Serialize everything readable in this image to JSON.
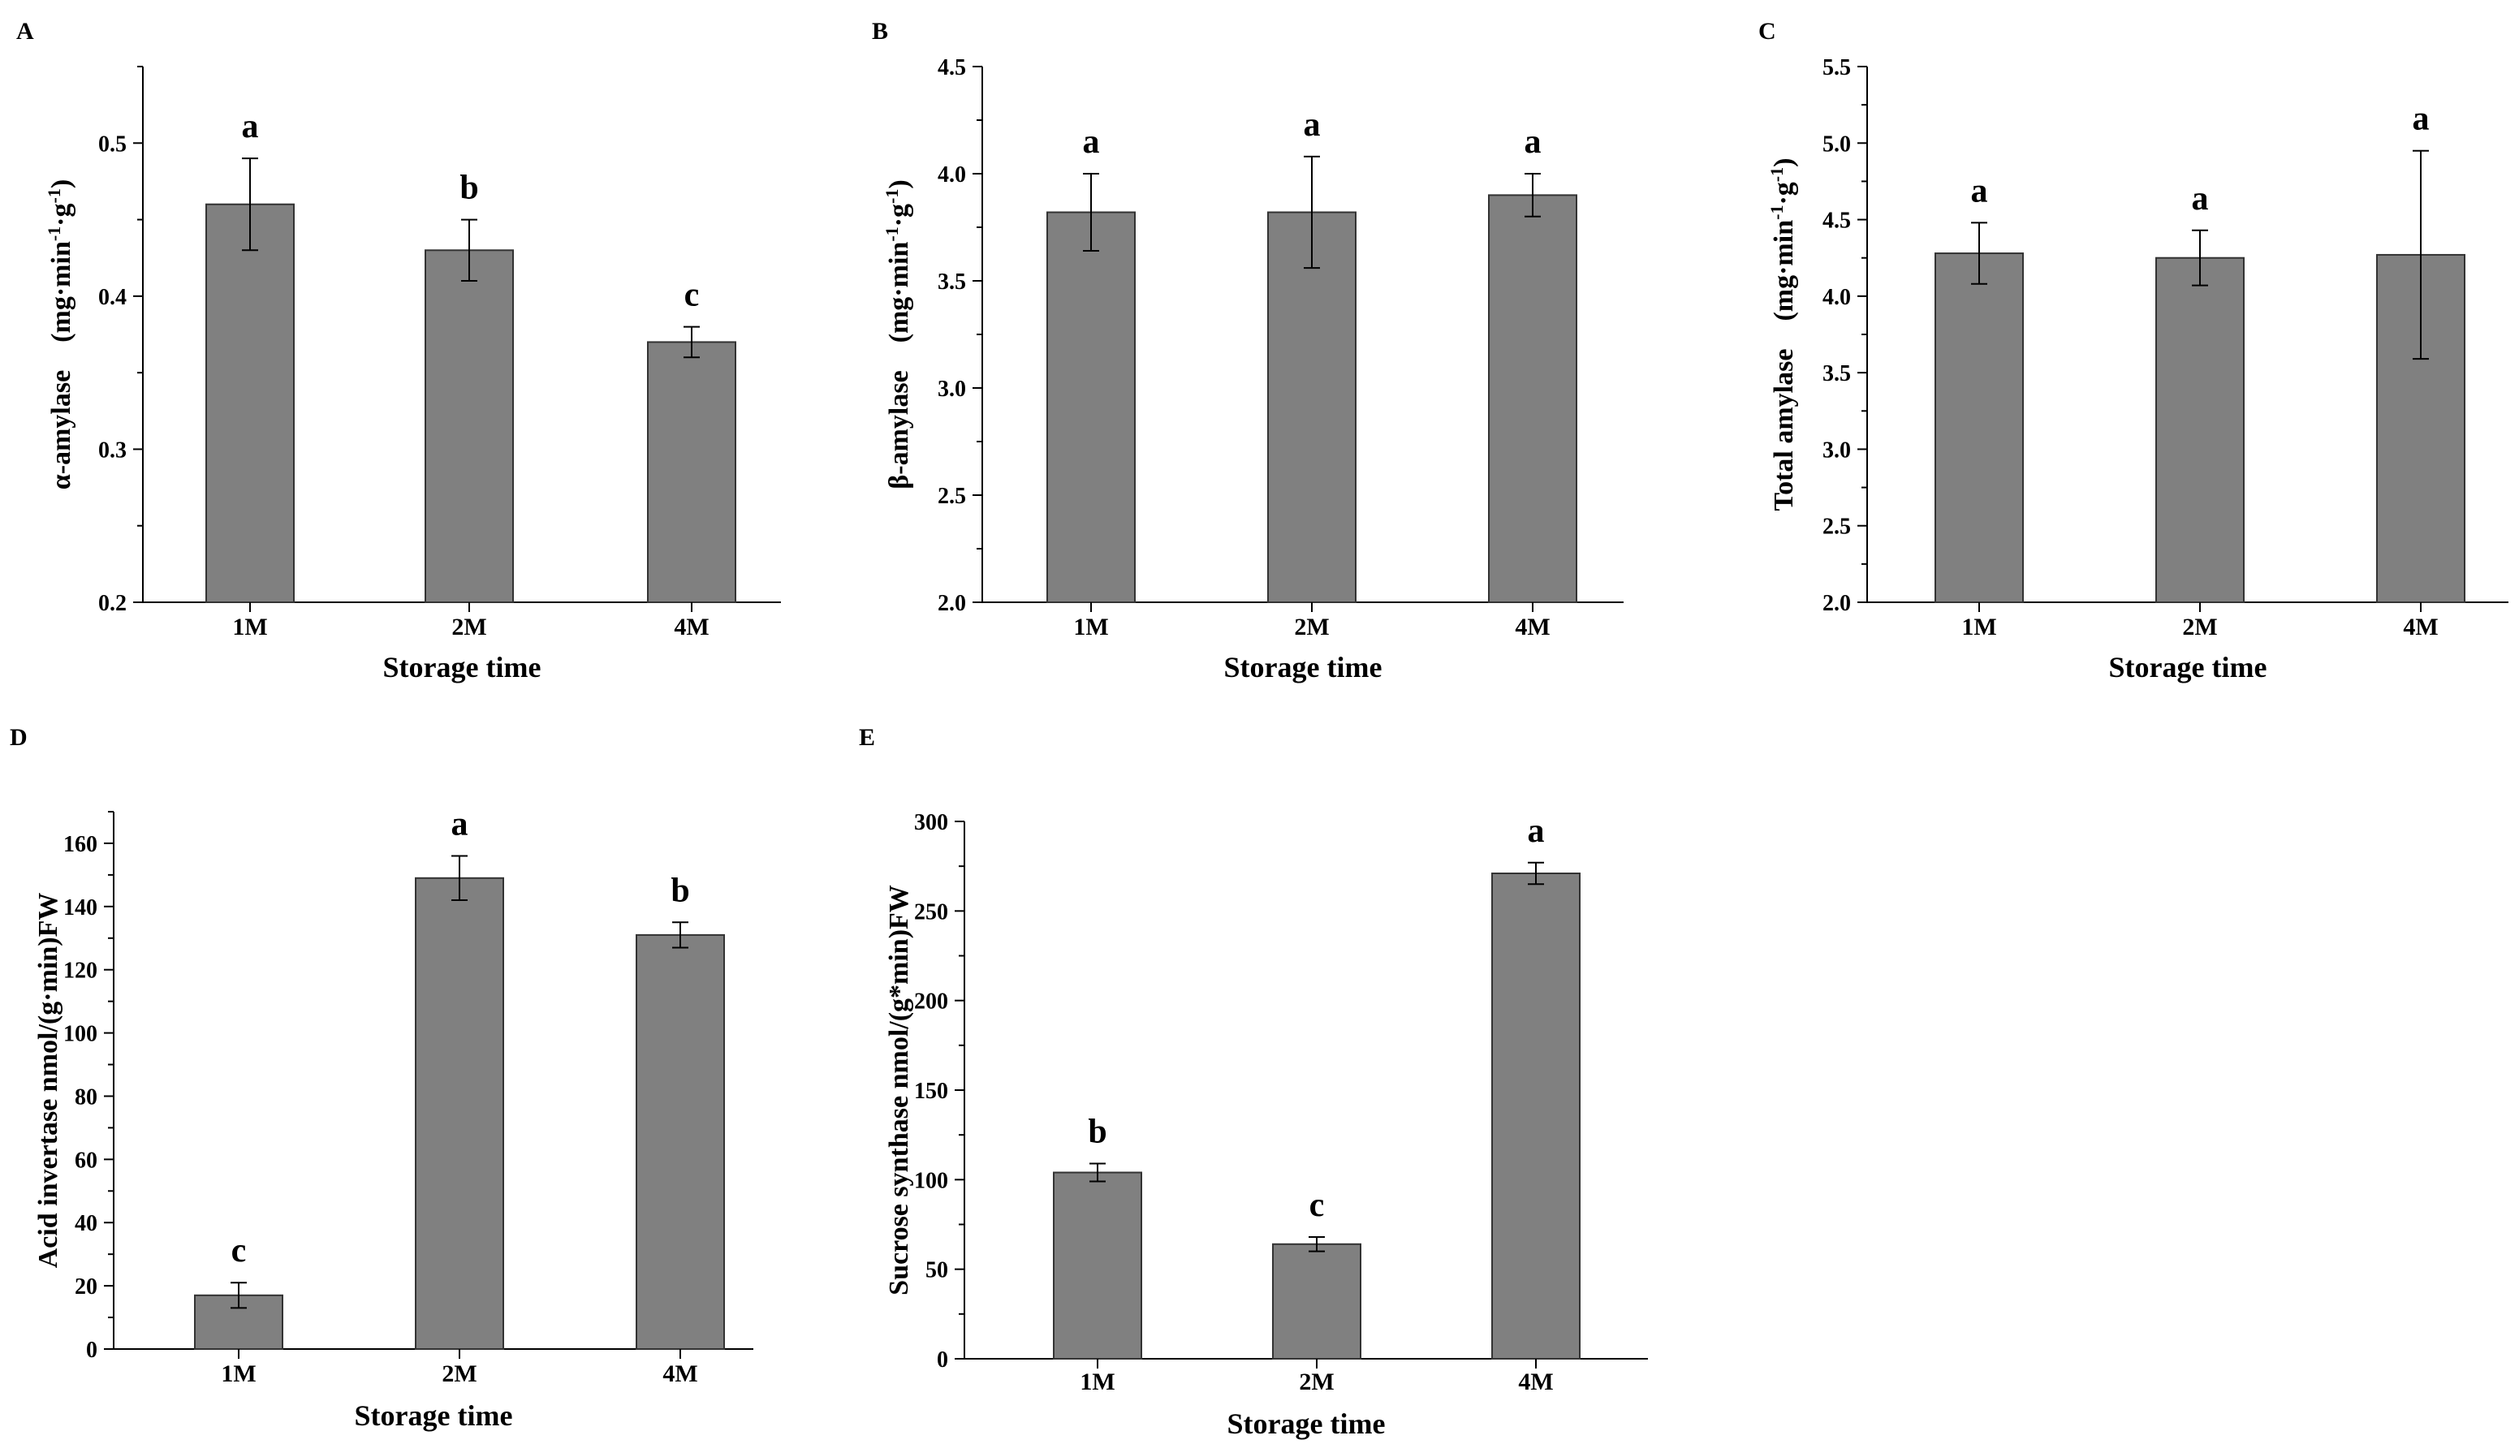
{
  "colors": {
    "bar_fill": "#808080",
    "bar_edge": "#333333",
    "axis": "#000000"
  },
  "chart_data": [
    {
      "panel": "A",
      "type": "bar",
      "categories": [
        "1M",
        "2M",
        "4M"
      ],
      "values": [
        0.46,
        0.43,
        0.37
      ],
      "errors": [
        0.03,
        0.02,
        0.01
      ],
      "letters": [
        "a",
        "b",
        "c"
      ],
      "xlabel": "Storage time",
      "ylabel_main": "α-amylase",
      "ylabel_unit": "(mg·min-1·g-1)",
      "ylim": [
        0.2,
        0.55
      ],
      "yticks": [
        0.2,
        0.3,
        0.4,
        0.5
      ],
      "ytick_labels": [
        "0.2",
        "0.3",
        "0.4",
        "0.5"
      ]
    },
    {
      "panel": "B",
      "type": "bar",
      "categories": [
        "1M",
        "2M",
        "4M"
      ],
      "values": [
        3.82,
        3.82,
        3.9
      ],
      "errors": [
        0.18,
        0.26,
        0.1
      ],
      "letters": [
        "a",
        "a",
        "a"
      ],
      "xlabel": "Storage time",
      "ylabel_main": "β-amylase",
      "ylabel_unit": "(mg·min-1·g-1)",
      "ylim": [
        2.0,
        4.5
      ],
      "yticks": [
        2.0,
        2.5,
        3.0,
        3.5,
        4.0,
        4.5
      ],
      "ytick_labels": [
        "2.0",
        "2.5",
        "3.0",
        "3.5",
        "4.0",
        "4.5"
      ]
    },
    {
      "panel": "C",
      "type": "bar",
      "categories": [
        "1M",
        "2M",
        "4M"
      ],
      "values": [
        4.28,
        4.25,
        4.27
      ],
      "errors": [
        0.2,
        0.18,
        0.68
      ],
      "letters": [
        "a",
        "a",
        "a"
      ],
      "xlabel": "Storage time",
      "ylabel_main": "Total amylase",
      "ylabel_unit": "(mg·min-1·g-1)",
      "ylim": [
        2.0,
        5.5
      ],
      "yticks": [
        2.0,
        2.5,
        3.0,
        3.5,
        4.0,
        4.5,
        5.0,
        5.5
      ],
      "ytick_labels": [
        "2.0",
        "2.5",
        "3.0",
        "3.5",
        "4.0",
        "4.5",
        "5.0",
        "5.5"
      ]
    },
    {
      "panel": "D",
      "type": "bar",
      "categories": [
        "1M",
        "2M",
        "4M"
      ],
      "values": [
        17,
        149,
        131
      ],
      "errors": [
        4,
        7,
        4
      ],
      "letters": [
        "c",
        "a",
        "b"
      ],
      "xlabel": "Storage time",
      "ylabel": "Acid invertase nmol/(g·min)FW",
      "ylim": [
        0,
        170
      ],
      "yticks": [
        0,
        20,
        40,
        60,
        80,
        100,
        120,
        140,
        160
      ],
      "ytick_labels": [
        "0",
        "20",
        "40",
        "60",
        "80",
        "100",
        "120",
        "140",
        "160"
      ]
    },
    {
      "panel": "E",
      "type": "bar",
      "categories": [
        "1M",
        "2M",
        "4M"
      ],
      "values": [
        104,
        64,
        271
      ],
      "errors": [
        5,
        4,
        6
      ],
      "letters": [
        "b",
        "c",
        "a"
      ],
      "xlabel": "Storage time",
      "ylabel": "Sucrose synthase nmol/(g*min)FW",
      "ylim": [
        0,
        300
      ],
      "yticks": [
        0,
        50,
        100,
        150,
        200,
        250,
        300
      ],
      "ytick_labels": [
        "0",
        "50",
        "100",
        "150",
        "200",
        "250",
        "300"
      ]
    }
  ]
}
